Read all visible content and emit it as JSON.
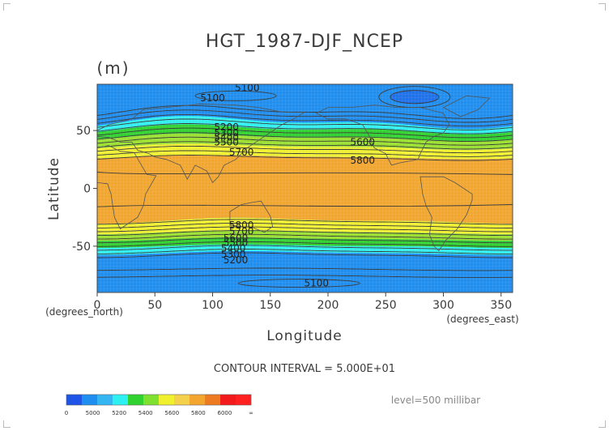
{
  "chart_data": {
    "type": "heatmap",
    "title": "HGT_1987-DJF_NCEP",
    "units": "(m)",
    "xlabel": "Longitude",
    "ylabel": "Latitude",
    "x_unit_note": "(degrees_east)",
    "y_unit_note": "(degrees_north)",
    "xlim": [
      0,
      360
    ],
    "ylim": [
      -90,
      90
    ],
    "x_ticks": [
      0,
      50,
      100,
      150,
      200,
      250,
      300,
      350
    ],
    "y_ticks": [
      50,
      0,
      -50
    ],
    "contour_interval_text": "CONTOUR INTERVAL = 5.000E+01",
    "level_text": "level=500 millibar",
    "contour_labels": [
      {
        "text": "5100",
        "lon": 130,
        "lat": 87
      },
      {
        "text": "5100",
        "lon": 100,
        "lat": 78
      },
      {
        "text": "5200",
        "lon": 112,
        "lat": 53
      },
      {
        "text": "5300",
        "lon": 112,
        "lat": 48
      },
      {
        "text": "5400",
        "lon": 112,
        "lat": 44
      },
      {
        "text": "5500",
        "lon": 112,
        "lat": 40
      },
      {
        "text": "5600",
        "lon": 230,
        "lat": 40
      },
      {
        "text": "5700",
        "lon": 125,
        "lat": 31
      },
      {
        "text": "5800",
        "lon": 230,
        "lat": 24
      },
      {
        "text": "5800",
        "lon": 125,
        "lat": -32
      },
      {
        "text": "5700",
        "lon": 125,
        "lat": -37
      },
      {
        "text": "5600",
        "lon": 120,
        "lat": -43
      },
      {
        "text": "5500",
        "lon": 120,
        "lat": -47
      },
      {
        "text": "5400",
        "lon": 118,
        "lat": -52
      },
      {
        "text": "5300",
        "lon": 118,
        "lat": -57
      },
      {
        "text": "5200",
        "lon": 120,
        "lat": -62
      },
      {
        "text": "5100",
        "lon": 190,
        "lat": -82
      }
    ],
    "colorbar": {
      "labels": [
        "0",
        "5000",
        "5200",
        "5400",
        "5600",
        "5800",
        "6000",
        "∞"
      ],
      "colors": [
        "#1f55e6",
        "#1e8ef0",
        "#33b6f2",
        "#2ff0f0",
        "#2fd22f",
        "#7ee02f",
        "#f0f02f",
        "#f5d04a",
        "#f2a62e",
        "#ee7a22",
        "#f21a1a",
        "#ff2020"
      ]
    },
    "band_colors": {
      "deep_low": "#1f55e6",
      "polar": "#1e8ef0",
      "cyan": "#2ff0f0",
      "green": "#2fd22f",
      "lime": "#9ae02f",
      "yellow": "#f0f02f",
      "tropics": "#f2a62e"
    }
  }
}
